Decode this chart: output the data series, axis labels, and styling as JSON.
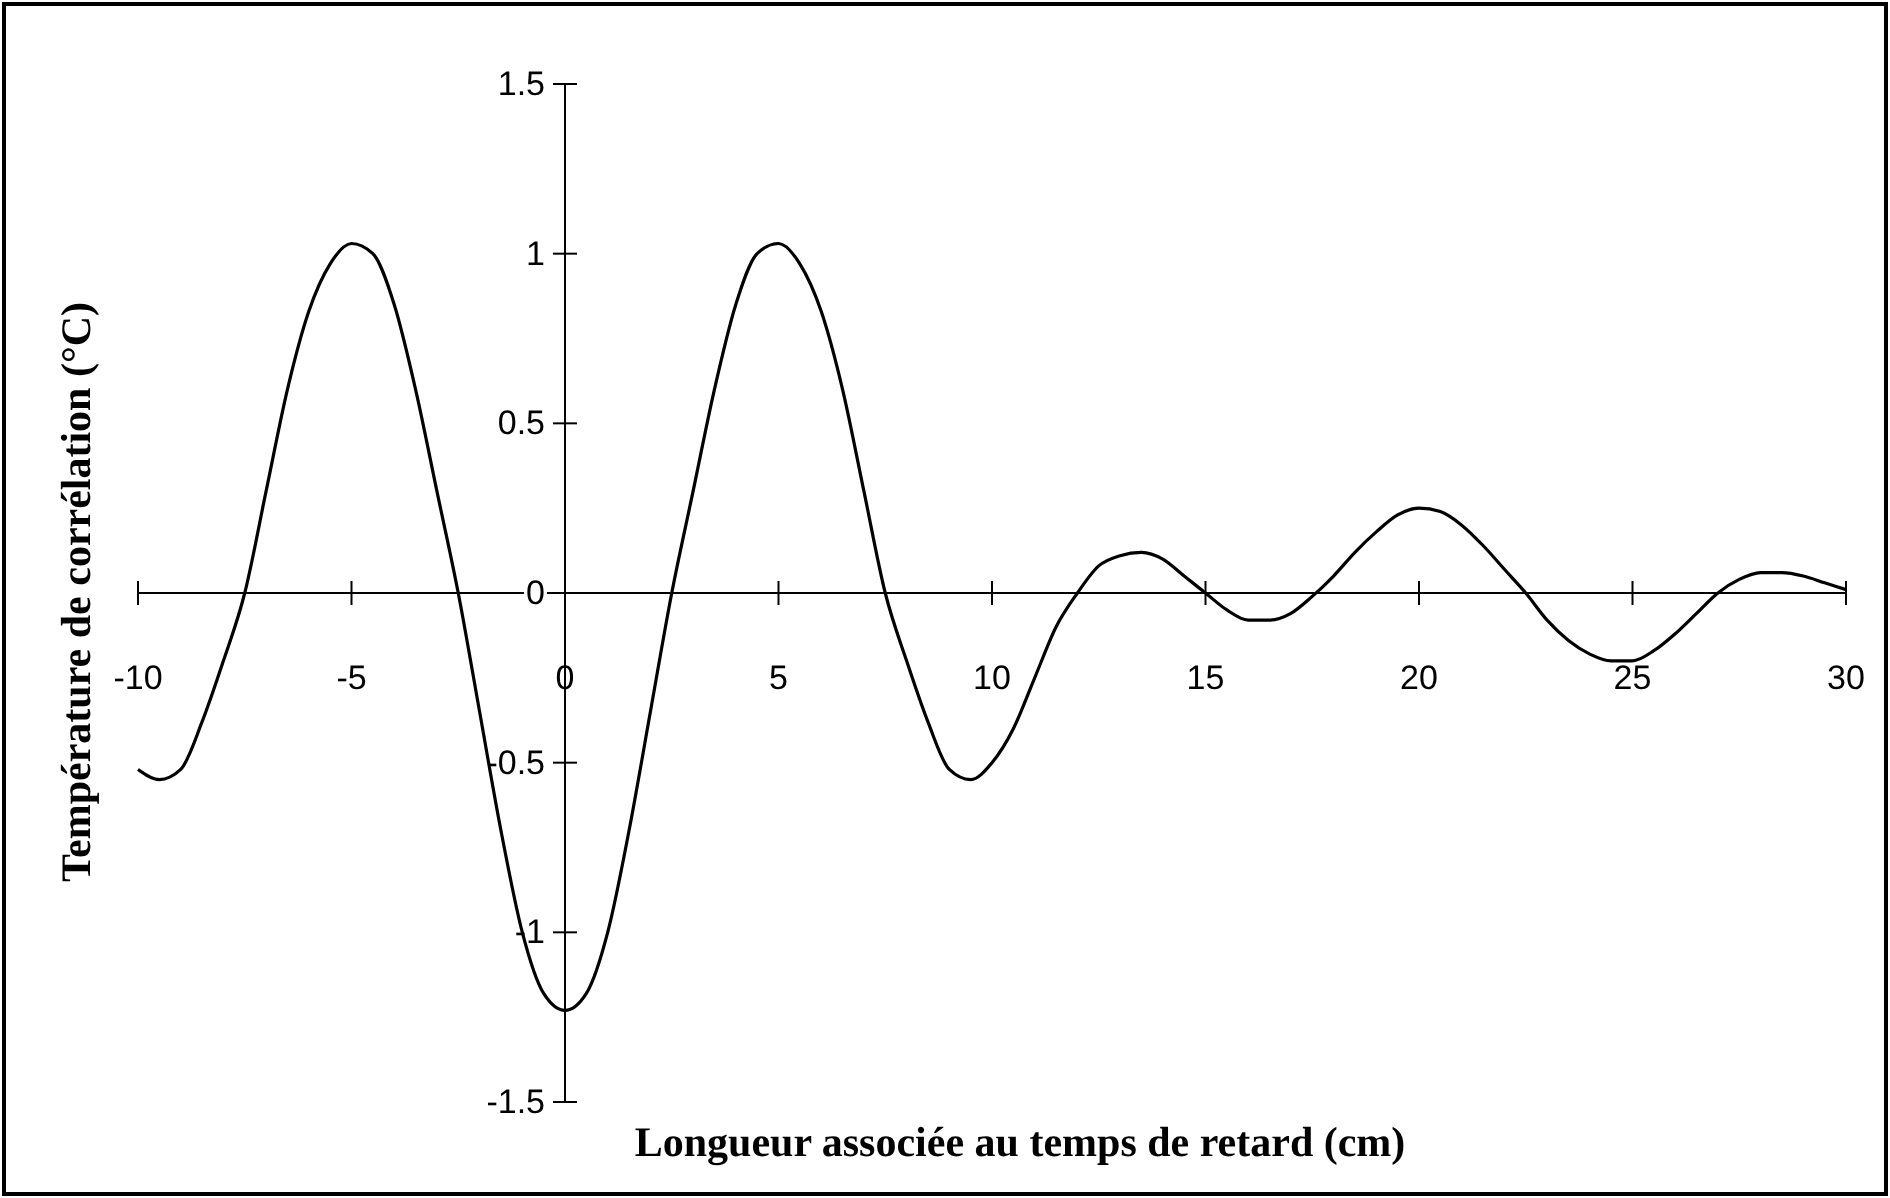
{
  "chart_data": {
    "type": "line",
    "xlabel": "Longueur associée au temps de retard (cm)",
    "ylabel": "Température de corrélation (°C)",
    "xlim": [
      -10,
      30
    ],
    "xticks": [
      -10,
      -5,
      0,
      5,
      10,
      15,
      20,
      25,
      30
    ],
    "ylim": [
      -1.5,
      1.5
    ],
    "yticks": [
      -1.5,
      -1,
      -0.5,
      0,
      0.5,
      1,
      1.5
    ],
    "grid": false,
    "marker": "none",
    "line_style": "solid",
    "series": [
      {
        "color": "#000000",
        "x": [
          -10,
          -9.5,
          -9,
          -8.5,
          -8,
          -7.5,
          -7,
          -6.5,
          -6,
          -5.5,
          -5,
          -4.5,
          -4,
          -3.5,
          -3,
          -2.5,
          -2,
          -1.5,
          -1,
          -0.5,
          0,
          0.5,
          1,
          1.5,
          2,
          2.5,
          3,
          3.5,
          4,
          4.5,
          5,
          5.5,
          6,
          6.5,
          7,
          7.5,
          8,
          8.5,
          9,
          9.5,
          10,
          10.5,
          11,
          11.5,
          12,
          12.5,
          13,
          13.5,
          14,
          14.5,
          15,
          15.5,
          16,
          16.5,
          17,
          17.5,
          18,
          18.5,
          19,
          19.5,
          20,
          20.5,
          21,
          21.5,
          22,
          22.5,
          23,
          23.5,
          24,
          24.5,
          25,
          25.5,
          26,
          26.5,
          27,
          27.5,
          28,
          28.5,
          29,
          29.5,
          30
        ],
        "values": [
          -0.52,
          -0.55,
          -0.52,
          -0.38,
          -0.2,
          0.0,
          0.3,
          0.6,
          0.83,
          0.97,
          1.03,
          1.0,
          0.85,
          0.6,
          0.3,
          0.0,
          -0.35,
          -0.7,
          -1.0,
          -1.18,
          -1.23,
          -1.18,
          -1.0,
          -0.7,
          -0.35,
          0.0,
          0.3,
          0.6,
          0.85,
          1.0,
          1.03,
          0.97,
          0.83,
          0.6,
          0.3,
          0.0,
          -0.2,
          -0.38,
          -0.52,
          -0.55,
          -0.5,
          -0.4,
          -0.25,
          -0.1,
          0.0,
          0.08,
          0.11,
          0.12,
          0.1,
          0.05,
          0.0,
          -0.05,
          -0.08,
          -0.08,
          -0.06,
          -0.01,
          0.05,
          0.12,
          0.18,
          0.23,
          0.25,
          0.24,
          0.2,
          0.14,
          0.07,
          0.0,
          -0.08,
          -0.14,
          -0.18,
          -0.2,
          -0.2,
          -0.17,
          -0.12,
          -0.06,
          0.0,
          0.04,
          0.06,
          0.06,
          0.05,
          0.03,
          0.01
        ]
      }
    ]
  }
}
